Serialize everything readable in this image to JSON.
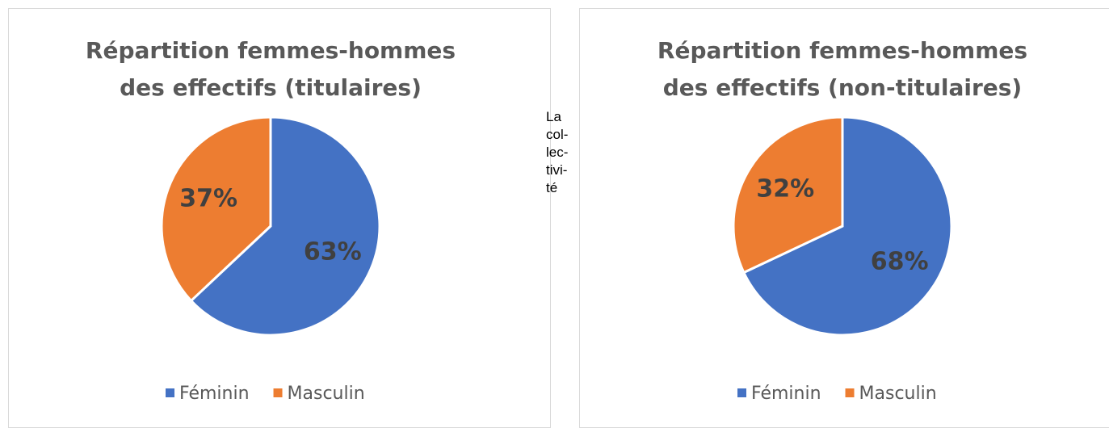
{
  "chart_data": [
    {
      "type": "pie",
      "title": "Répartition femmes-hommes des effectifs (titulaires)",
      "categories": [
        "Féminin",
        "Masculin"
      ],
      "values": [
        63,
        37
      ],
      "value_labels": [
        "63%",
        "37%"
      ],
      "colors": [
        "#4472c4",
        "#ed7d31"
      ],
      "legend": "bottom"
    },
    {
      "type": "pie",
      "title": "Répartition femmes-hommes des effectifs (non-titulaires)",
      "categories": [
        "Féminin",
        "Masculin"
      ],
      "values": [
        68,
        32
      ],
      "value_labels": [
        "68%",
        "32%"
      ],
      "colors": [
        "#4472c4",
        "#ed7d31"
      ],
      "legend": "bottom"
    }
  ],
  "text": {
    "lines": [
      "La",
      "col-",
      "lec-",
      "tivi-",
      "té"
    ]
  }
}
